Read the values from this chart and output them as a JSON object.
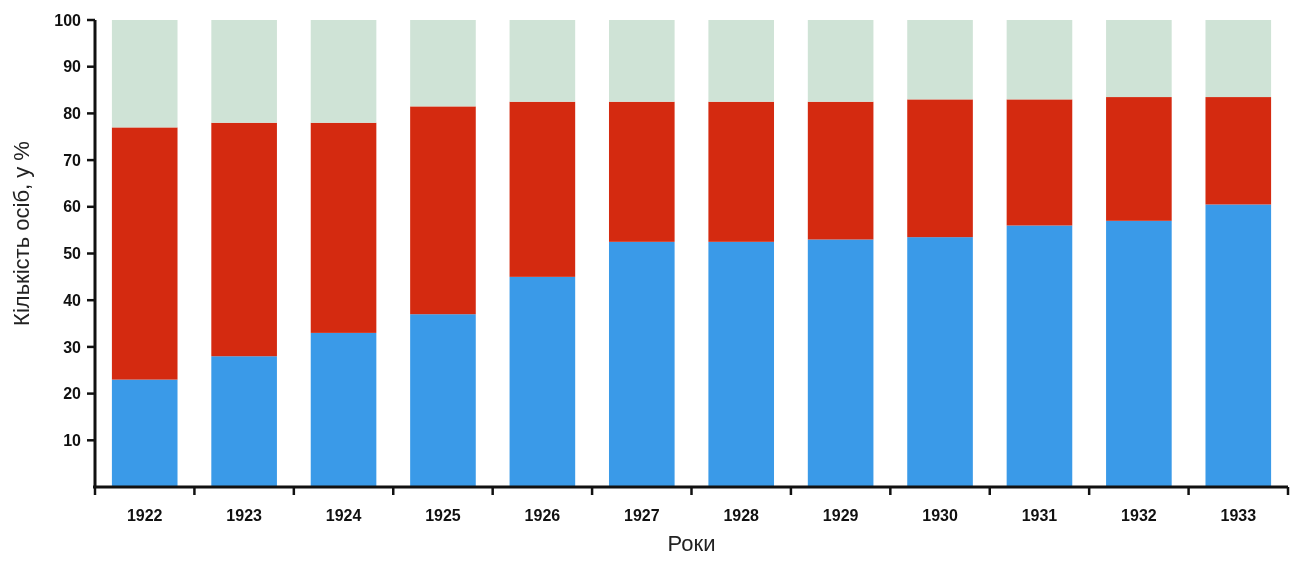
{
  "chart_data": {
    "type": "bar",
    "stacked": true,
    "xlabel": "Роки",
    "ylabel": "Кількість осіб, у %",
    "categories": [
      "1922",
      "1923",
      "1924",
      "1925",
      "1926",
      "1927",
      "1928",
      "1929",
      "1930",
      "1931",
      "1932",
      "1933"
    ],
    "series": [
      {
        "color": "#3a9ae8",
        "values": [
          23,
          28,
          33,
          37,
          45,
          52.5,
          52.5,
          53,
          53.5,
          56,
          57,
          60.5
        ]
      },
      {
        "color": "#d42a10",
        "values": [
          54,
          50,
          45,
          44.5,
          37.5,
          30,
          30,
          29.5,
          29.5,
          27,
          26.5,
          23
        ]
      },
      {
        "color": "#cfe3d6",
        "values": [
          23,
          22,
          22,
          18.5,
          17.5,
          17.5,
          17.5,
          17.5,
          17,
          17,
          16.5,
          16.5
        ]
      }
    ],
    "ylim": [
      0,
      100
    ],
    "yticks": [
      10,
      20,
      30,
      40,
      50,
      60,
      70,
      80,
      90,
      100
    ],
    "grid": false
  }
}
